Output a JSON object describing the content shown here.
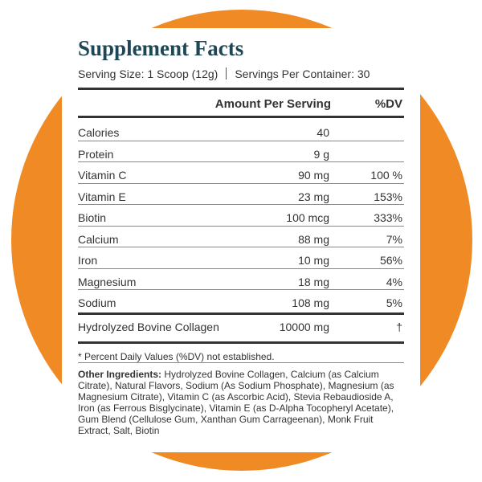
{
  "header": {
    "title": "Supplement Facts",
    "serving_size": "Serving Size: 1 Scoop (12g)",
    "servings_per_container": "Servings Per Container: 30"
  },
  "table": {
    "columns": [
      "Amount Per Serving",
      "%DV"
    ],
    "rows": [
      {
        "name": "Calories",
        "amount": "40"
      },
      {
        "name": "Protein",
        "amount": "9 g"
      },
      {
        "name": "Vitamin C",
        "amount": "90 mg",
        "dv": "100 %"
      },
      {
        "name": "Vitamin E",
        "amount": "23 mg",
        "dv": "153%"
      },
      {
        "name": "Biotin",
        "amount": "100 mcg",
        "dv": "333%"
      },
      {
        "name": "Calcium",
        "amount": "88 mg",
        "dv": "7%"
      },
      {
        "name": "Iron",
        "amount": "10 mg",
        "dv": "56%"
      },
      {
        "name": "Magnesium",
        "amount": "18 mg",
        "dv": "4%"
      },
      {
        "name": "Sodium",
        "amount": "108 mg",
        "dv": "5%"
      }
    ],
    "extra_row": {
      "name": "Hydrolyzed Bovine Collagen",
      "amount": "10000 mg",
      "dv": "†"
    }
  },
  "footnote": "* Percent Daily Values (%DV) not established.",
  "other_ingredients": {
    "label": "Other Ingredients:",
    "text": "Hydrolyzed Bovine Collagen, Calcium (as Calcium Citrate), Natural Flavors, Sodium (As Sodium Phosphate), Magnesium (as Magnesium Citrate), Vitamin C (as Ascorbic Acid), Stevia Rebaudioside A, Iron (as Ferrous Bisglycinate), Vitamin E (as D-Alpha Tocopheryl Acetate), Gum Blend (Cellulose Gum, Xanthan Gum Carrageenan), Monk Fruit Extract, Salt, Biotin"
  }
}
